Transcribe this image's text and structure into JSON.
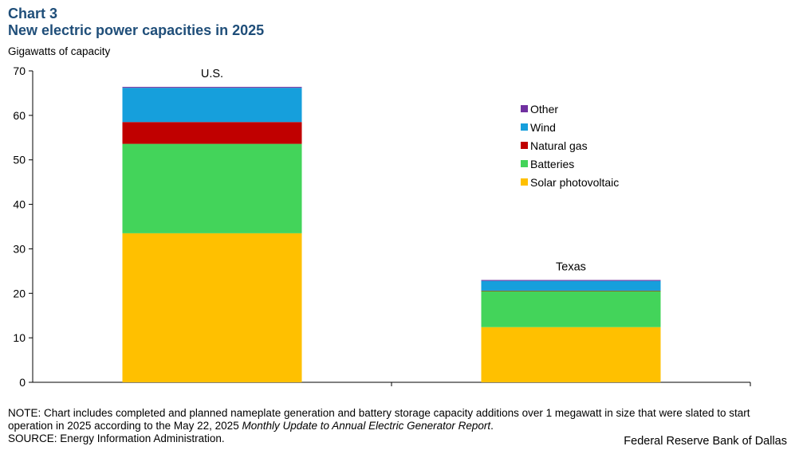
{
  "header": {
    "chart_number": "Chart 3",
    "title": "New electric power capacities in 2025",
    "unit_label": "Gigawatts of capacity"
  },
  "footer": {
    "note_prefix": "NOTE:  Chart includes completed and planned nameplate generation and battery storage capacity additions over 1 megawatt in size that were slated to start operation in 2025 according to the May 22, 2025 ",
    "note_italic": "Monthly Update to Annual Electric Generator Report",
    "note_suffix": ".",
    "source": "SOURCE: Energy Information Administration.",
    "brand": "Federal Reserve Bank of Dallas"
  },
  "chart_data": {
    "type": "bar",
    "stacked": true,
    "title": "New electric power capacities in 2025",
    "ylabel": "Gigawatts of capacity",
    "ylim": [
      0,
      70
    ],
    "yticks": [
      0,
      10,
      20,
      30,
      40,
      50,
      60,
      70
    ],
    "grid": false,
    "legend_position": "right",
    "categories": [
      "U.S.",
      "Texas"
    ],
    "series": [
      {
        "name": "Solar photovoltaic",
        "color": "#ffc000",
        "values": [
          33.5,
          12.4
        ]
      },
      {
        "name": "Batteries",
        "color": "#43d45a",
        "values": [
          20.1,
          8.1
        ]
      },
      {
        "name": "Natural gas",
        "color": "#c00000",
        "values": [
          4.9,
          0.1
        ]
      },
      {
        "name": "Wind",
        "color": "#169fdc",
        "values": [
          7.7,
          2.2
        ]
      },
      {
        "name": "Other",
        "color": "#7030a0",
        "values": [
          0.2,
          0.2
        ]
      }
    ]
  }
}
